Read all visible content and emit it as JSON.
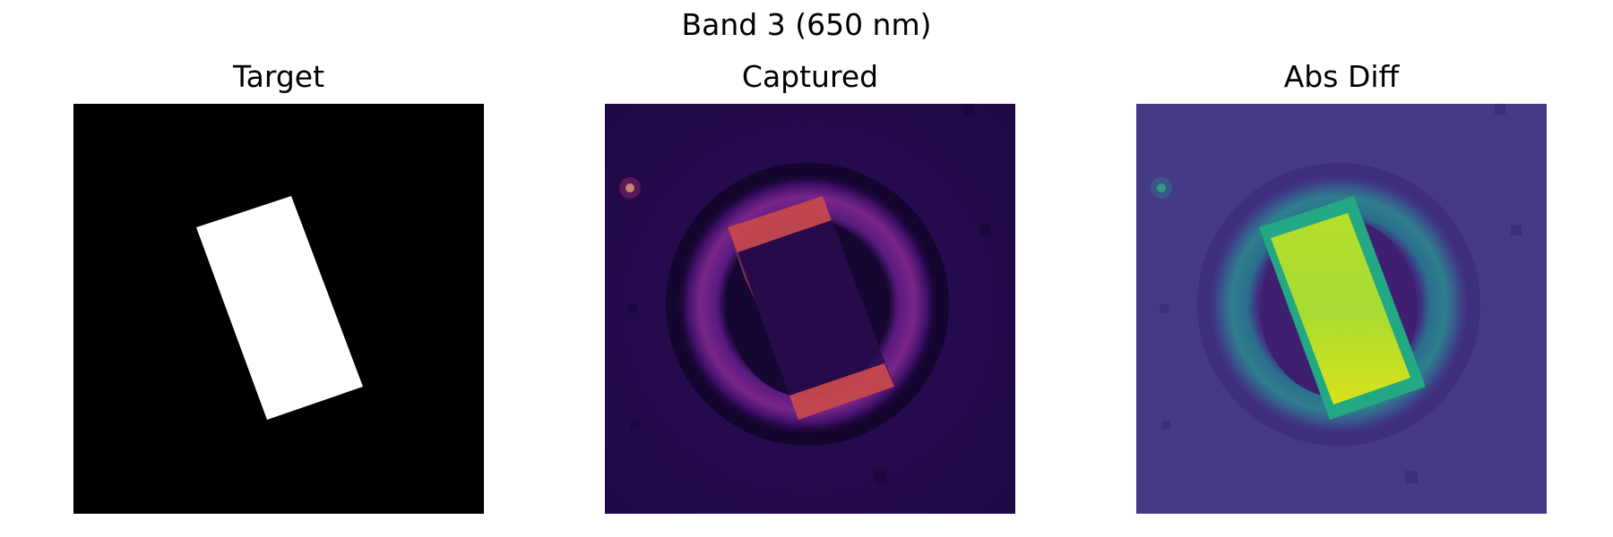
{
  "figure": {
    "title": "Band 3 (650 nm)"
  },
  "panels": [
    {
      "title": "Target",
      "colormap": "gray",
      "background": "#000000",
      "foreground": "#ffffff"
    },
    {
      "title": "Captured",
      "colormap": "inferno",
      "background": "#240b4d",
      "ring": "#6a1f86",
      "edge": "#e0584a",
      "hot_spot": "#fcffa4"
    },
    {
      "title": "Abs Diff",
      "colormap": "viridis",
      "background": "#463a87",
      "ring": "#2f6a8e",
      "fill": "#c8e02a",
      "edge": "#23a884",
      "hot_spot": "#3bc07a"
    }
  ]
}
